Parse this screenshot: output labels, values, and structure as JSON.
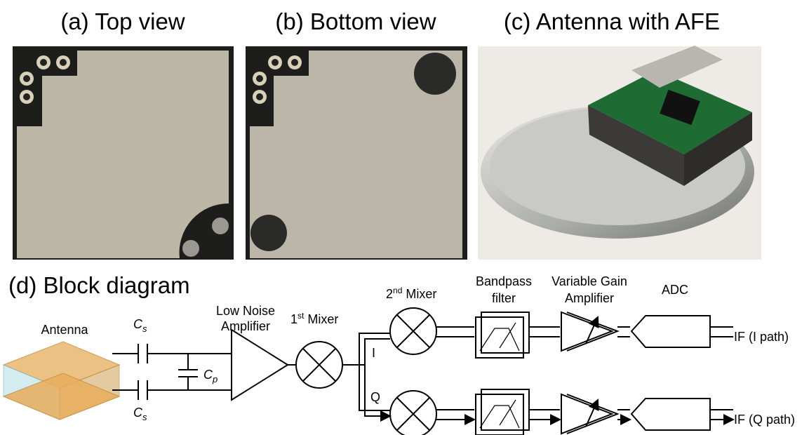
{
  "panels": {
    "a": "(a) Top view",
    "b": "(b) Bottom view",
    "c": "(c) Antenna with AFE",
    "d": "(d) Block diagram"
  },
  "blocks": {
    "antenna": "Antenna",
    "cs_top": {
      "main": "C",
      "sub": "s"
    },
    "cp": {
      "main": "C",
      "sub": "p"
    },
    "cs_bottom": {
      "main": "C",
      "sub": "s"
    },
    "lna": [
      "Low Noise",
      "Amplifier"
    ],
    "mixer1": {
      "num": "1",
      "sup": "st",
      "text": " Mixer"
    },
    "mixer2": {
      "num": "2",
      "sup": "nd",
      "text": " Mixer"
    },
    "bandpass": [
      "Bandpass",
      "filter"
    ],
    "vga": [
      "Variable Gain",
      "Amplifier"
    ],
    "adc": "ADC",
    "i_label": "I",
    "q_label": "Q",
    "out_i": "IF (I path)",
    "out_q": "IF (Q path)"
  }
}
